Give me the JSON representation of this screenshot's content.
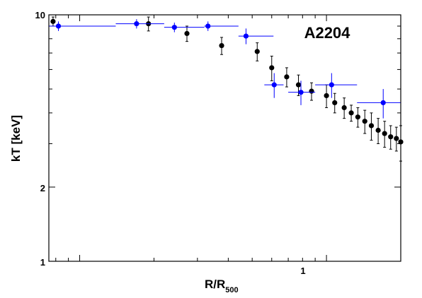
{
  "chart_data": {
    "type": "scatter",
    "title": "",
    "annotation": "A2204",
    "xlabel": "R/R",
    "xlabel_sub": "500",
    "ylabel": "kT [keV]",
    "xscale": "log",
    "yscale": "log",
    "xlim": [
      0.075,
      2.0
    ],
    "ylim": [
      1,
      10
    ],
    "x_tick_labels": [
      {
        "value": 1,
        "label": "1"
      }
    ],
    "y_tick_labels": [
      {
        "value": 1,
        "label": "1"
      },
      {
        "value": 2,
        "label": "2"
      },
      {
        "value": 10,
        "label": "10"
      }
    ],
    "grid": false,
    "series": [
      {
        "color": "#000000",
        "points": [
          {
            "x": 0.078,
            "y": 9.4,
            "ylo": 9.0,
            "yhi": 9.8
          },
          {
            "x": 0.19,
            "y": 9.2,
            "ylo": 8.6,
            "yhi": 9.8
          },
          {
            "x": 0.272,
            "y": 8.4,
            "ylo": 7.8,
            "yhi": 9.0
          },
          {
            "x": 0.376,
            "y": 7.5,
            "ylo": 6.9,
            "yhi": 8.1
          },
          {
            "x": 0.524,
            "y": 7.1,
            "ylo": 6.5,
            "yhi": 7.7
          },
          {
            "x": 0.6,
            "y": 6.1,
            "ylo": 5.4,
            "yhi": 6.8
          },
          {
            "x": 0.69,
            "y": 5.6,
            "ylo": 5.1,
            "yhi": 6.1
          },
          {
            "x": 0.77,
            "y": 5.2,
            "ylo": 4.7,
            "yhi": 5.7
          },
          {
            "x": 0.87,
            "y": 4.9,
            "ylo": 4.5,
            "yhi": 5.3
          },
          {
            "x": 1.0,
            "y": 4.7,
            "ylo": 4.2,
            "yhi": 5.2
          },
          {
            "x": 1.08,
            "y": 4.4,
            "ylo": 4.0,
            "yhi": 4.8
          },
          {
            "x": 1.18,
            "y": 4.2,
            "ylo": 3.8,
            "yhi": 4.6
          },
          {
            "x": 1.26,
            "y": 4.0,
            "ylo": 3.7,
            "yhi": 4.3
          },
          {
            "x": 1.34,
            "y": 3.85,
            "ylo": 3.5,
            "yhi": 4.2
          },
          {
            "x": 1.43,
            "y": 3.7,
            "ylo": 3.3,
            "yhi": 4.1
          },
          {
            "x": 1.52,
            "y": 3.55,
            "ylo": 3.1,
            "yhi": 4.0
          },
          {
            "x": 1.62,
            "y": 3.4,
            "ylo": 3.0,
            "yhi": 3.8
          },
          {
            "x": 1.72,
            "y": 3.3,
            "ylo": 2.9,
            "yhi": 3.7
          },
          {
            "x": 1.82,
            "y": 3.2,
            "ylo": 2.85,
            "yhi": 3.55
          },
          {
            "x": 1.92,
            "y": 3.15,
            "ylo": 2.8,
            "yhi": 3.5
          },
          {
            "x": 2.0,
            "y": 3.05,
            "ylo": 2.55,
            "yhi": 3.55
          }
        ]
      },
      {
        "color": "#0000ff",
        "points": [
          {
            "x": 0.082,
            "y": 9.0,
            "xlo": 0.075,
            "xhi": 0.14,
            "ylo": 8.6,
            "yhi": 9.4
          },
          {
            "x": 0.17,
            "y": 9.2,
            "xlo": 0.14,
            "xhi": 0.22,
            "ylo": 8.8,
            "yhi": 9.6
          },
          {
            "x": 0.242,
            "y": 8.9,
            "xlo": 0.22,
            "xhi": 0.32,
            "ylo": 8.5,
            "yhi": 9.3
          },
          {
            "x": 0.331,
            "y": 9.0,
            "xlo": 0.32,
            "xhi": 0.44,
            "ylo": 8.6,
            "yhi": 9.4
          },
          {
            "x": 0.472,
            "y": 8.2,
            "xlo": 0.44,
            "xhi": 0.61,
            "ylo": 7.6,
            "yhi": 8.8
          },
          {
            "x": 0.614,
            "y": 5.2,
            "xlo": 0.56,
            "xhi": 0.67,
            "ylo": 4.6,
            "yhi": 5.8
          },
          {
            "x": 0.788,
            "y": 4.85,
            "xlo": 0.7,
            "xhi": 0.9,
            "ylo": 4.3,
            "yhi": 5.4
          },
          {
            "x": 1.049,
            "y": 5.2,
            "xlo": 0.9,
            "xhi": 1.33,
            "ylo": 4.6,
            "yhi": 5.8
          },
          {
            "x": 1.698,
            "y": 4.4,
            "xlo": 1.33,
            "xhi": 2.0,
            "ylo": 3.8,
            "yhi": 5.0
          }
        ]
      }
    ]
  }
}
